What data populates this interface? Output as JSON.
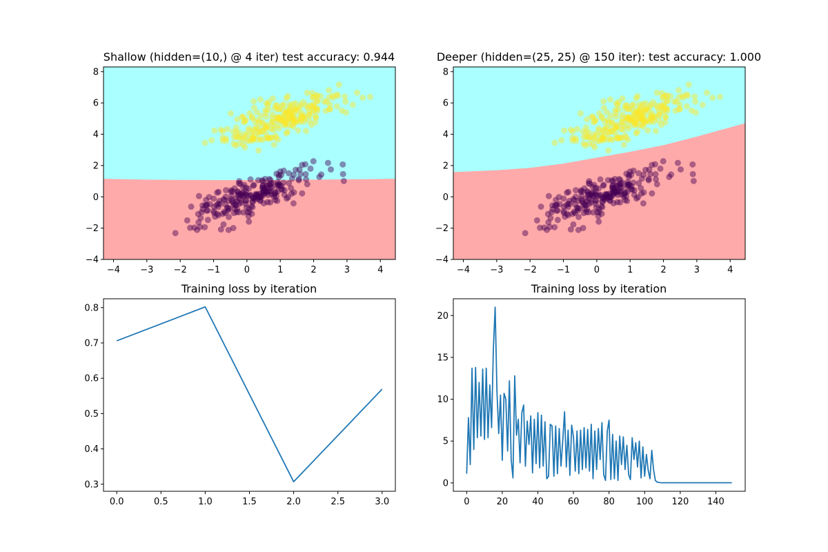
{
  "chart_data": [
    {
      "type": "scatter",
      "title": "Shallow (hidden=(10,) @ 4 iter) test accuracy: 0.944",
      "xlim": [
        -4.3,
        4.45
      ],
      "ylim": [
        -4,
        8.3
      ],
      "xticks": [
        -4,
        -3,
        -2,
        -1,
        0,
        1,
        2,
        3,
        4
      ],
      "yticks": [
        -4,
        -2,
        0,
        2,
        4,
        6,
        8
      ],
      "region_colors": {
        "class_0": "#ffaaaa",
        "class_1": "#aaffff"
      },
      "decision_boundary": {
        "x": [
          -4.3,
          -3,
          -2,
          -1,
          0,
          1,
          2,
          3,
          4.45
        ],
        "y": [
          1.15,
          1.1,
          1.08,
          1.07,
          1.07,
          1.08,
          1.1,
          1.12,
          1.15
        ]
      },
      "point_colors": {
        "class_0": "#440154",
        "class_1": "#fde725"
      },
      "point_alpha": 0.45
    },
    {
      "type": "scatter",
      "title": "Deeper (hidden=(25, 25) @ 150 iter): test accuracy: 1.000",
      "xlim": [
        -4.3,
        4.45
      ],
      "ylim": [
        -4,
        8.3
      ],
      "xticks": [
        -4,
        -3,
        -2,
        -1,
        0,
        1,
        2,
        3,
        4
      ],
      "yticks": [
        -4,
        -2,
        0,
        2,
        4,
        6,
        8
      ],
      "region_colors": {
        "class_0": "#ffaaaa",
        "class_1": "#aaffff"
      },
      "decision_boundary": {
        "x": [
          -4.3,
          -3,
          -2,
          -1,
          0,
          1,
          2,
          3,
          4.45
        ],
        "y": [
          1.58,
          1.7,
          1.85,
          2.12,
          2.5,
          2.88,
          3.3,
          3.85,
          4.7
        ]
      },
      "point_colors": {
        "class_0": "#440154",
        "class_1": "#fde725"
      },
      "point_alpha": 0.45
    },
    {
      "type": "line",
      "title": "Training loss by iteration",
      "x": [
        0,
        1,
        2,
        3
      ],
      "values": [
        0.706,
        0.802,
        0.307,
        0.569
      ],
      "xlim": [
        -0.15,
        3.15
      ],
      "ylim": [
        0.28,
        0.825
      ],
      "xticks": [
        "0.0",
        "0.5",
        "1.0",
        "1.5",
        "2.0",
        "2.5",
        "3.0"
      ],
      "yticks": [
        "0.3",
        "0.4",
        "0.5",
        "0.6",
        "0.7",
        "0.8"
      ],
      "color": "#1f77b4"
    },
    {
      "type": "line",
      "title": "Training loss by iteration",
      "x_start": 0,
      "values": [
        1.1,
        7.8,
        2.2,
        13.7,
        4.0,
        13.8,
        5.4,
        12.0,
        5.6,
        13.6,
        5.2,
        13.7,
        5.4,
        11.7,
        6.6,
        16.0,
        21.0,
        11.0,
        5.9,
        10.5,
        2.7,
        10.7,
        10.0,
        3.8,
        12.2,
        2.8,
        0.6,
        12.8,
        5.7,
        7.6,
        2.4,
        8.4,
        9.3,
        2.0,
        7.4,
        4.6,
        8.0,
        1.2,
        7.6,
        2.3,
        8.4,
        1.8,
        8.1,
        2.0,
        7.3,
        0.5,
        0.8,
        7.0,
        6.8,
        0.8,
        6.8,
        1.1,
        6.5,
        2.0,
        5.1,
        8.5,
        1.9,
        6.3,
        0.9,
        6.9,
        5.5,
        1.4,
        6.2,
        1.1,
        6.3,
        1.6,
        6.6,
        1.8,
        6.4,
        1.4,
        7.0,
        0.5,
        6.2,
        1.6,
        6.5,
        2.8,
        7.2,
        1.0,
        0.3,
        6.2,
        7.5,
        0.4,
        5.8,
        0.5,
        5.0,
        0.3,
        5.6,
        2.2,
        5.5,
        1.6,
        4.5,
        1.0,
        0.4,
        5.4,
        2.8,
        4.8,
        1.9,
        5.0,
        0.6,
        4.3,
        0.8,
        3.4,
        1.5,
        0.5,
        3.9,
        1.6,
        0.3,
        0.1,
        0.05,
        0.03,
        0.02,
        0.02,
        0.02,
        0.02,
        0.02,
        0.02,
        0.02,
        0.02,
        0.02,
        0.02,
        0.02,
        0.02,
        0.02,
        0.02,
        0.02,
        0.02,
        0.02,
        0.02,
        0.02,
        0.02,
        0.02,
        0.02,
        0.02,
        0.02,
        0.02,
        0.02,
        0.02,
        0.02,
        0.02,
        0.02,
        0.02,
        0.02,
        0.02,
        0.02,
        0.02,
        0.02,
        0.02,
        0.02,
        0.02,
        0.02
      ],
      "xlim": [
        -7.5,
        156.5
      ],
      "ylim": [
        -1.0,
        22.0
      ],
      "xticks": [
        "0",
        "20",
        "40",
        "60",
        "80",
        "100",
        "120",
        "140"
      ],
      "yticks": [
        "0",
        "5",
        "10",
        "15",
        "20"
      ],
      "color": "#1f77b4"
    }
  ]
}
